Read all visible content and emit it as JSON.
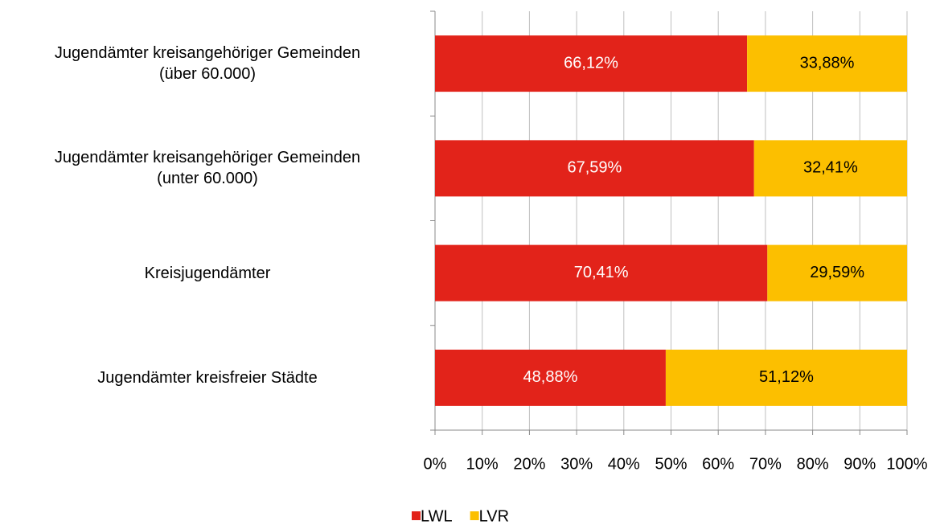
{
  "chart_data": {
    "type": "stacked-barh",
    "categories": [
      "Jugendämter kreisangehöriger Gemeinden\n(über 60.000)",
      "Jugendämter kreisangehöriger Gemeinden\n(unter 60.000)",
      "Kreisjugendämter",
      "Jugendämter kreisfreier Städte"
    ],
    "series": [
      {
        "name": "LWL",
        "color": "#e2231a",
        "values": [
          66.12,
          67.59,
          70.41,
          48.88
        ],
        "value_labels": [
          "66,12%",
          "67,59%",
          "70,41%",
          "48,88%"
        ]
      },
      {
        "name": "LVR",
        "color": "#fcbf00",
        "values": [
          33.88,
          32.41,
          29.59,
          51.12
        ],
        "value_labels": [
          "33,88%",
          "32,41%",
          "29,59%",
          "51,12%"
        ]
      }
    ],
    "xlim": [
      0,
      100
    ],
    "xticks": [
      {
        "value": 0,
        "label": "0%"
      },
      {
        "value": 10,
        "label": "10%"
      },
      {
        "value": 20,
        "label": "20%"
      },
      {
        "value": 30,
        "label": "30%"
      },
      {
        "value": 40,
        "label": "40%"
      },
      {
        "value": 50,
        "label": "50%"
      },
      {
        "value": 60,
        "label": "60%"
      },
      {
        "value": 70,
        "label": "70%"
      },
      {
        "value": 80,
        "label": "80%"
      },
      {
        "value": 90,
        "label": "90%"
      },
      {
        "value": 100,
        "label": "100%"
      }
    ],
    "grid": true,
    "legend": "bottom"
  }
}
